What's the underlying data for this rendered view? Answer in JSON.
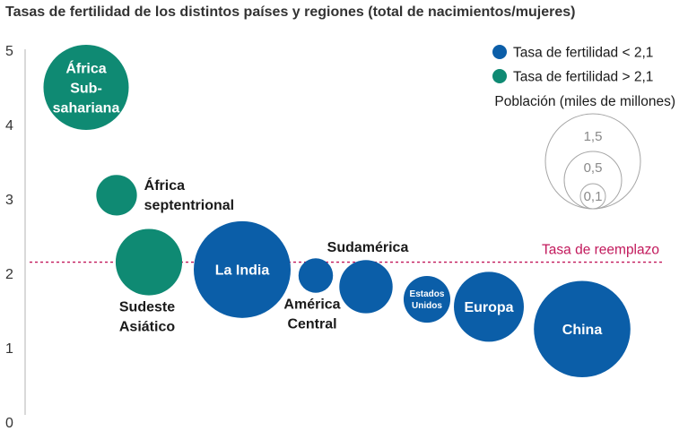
{
  "chart_data": {
    "type": "scatter",
    "title": "Tasas de fertilidad de los distintos países y regiones (total de nacimientos/mujeres)",
    "ylim": [
      0,
      5
    ],
    "yticks": [
      "0",
      "1",
      "2",
      "3",
      "4",
      "5"
    ],
    "reference_line": {
      "value": 2.15,
      "label": "Tasa de reemplazo",
      "color": "#c2185b"
    },
    "colors": {
      "below": "#0b5ea8",
      "above": "#0f8a73"
    },
    "legend": {
      "below": "Tasa de fertilidad < 2,1",
      "above": "Tasa de fertilidad > 2,1",
      "size_title": "Población (miles de millones)",
      "sizes": [
        "1,5",
        "0,5",
        "0,1"
      ]
    },
    "points": [
      {
        "label": [
          "África",
          "Sub-",
          "sahariana"
        ],
        "fertility": 4.5,
        "population_bn": 1.1,
        "group": "above",
        "label_pos": "inside"
      },
      {
        "label": [
          "África",
          "septentrional"
        ],
        "fertility": 3.05,
        "population_bn": 0.25,
        "group": "above",
        "label_pos": "right"
      },
      {
        "label": [
          "Sudeste",
          "Asiático"
        ],
        "fertility": 2.15,
        "population_bn": 0.67,
        "group": "above",
        "label_pos": "below"
      },
      {
        "label": [
          "La India"
        ],
        "fertility": 2.05,
        "population_bn": 1.42,
        "group": "below",
        "label_pos": "inside"
      },
      {
        "label": [
          "América",
          "Central"
        ],
        "fertility": 1.97,
        "population_bn": 0.18,
        "group": "below",
        "label_pos": "below"
      },
      {
        "label": [
          "Sudamérica"
        ],
        "fertility": 1.82,
        "population_bn": 0.43,
        "group": "below",
        "label_pos": "above"
      },
      {
        "label": [
          "Estados",
          "Unidos"
        ],
        "fertility": 1.65,
        "population_bn": 0.33,
        "group": "below",
        "label_pos": "inside"
      },
      {
        "label": [
          "Europa"
        ],
        "fertility": 1.55,
        "population_bn": 0.74,
        "group": "below",
        "label_pos": "inside"
      },
      {
        "label": [
          "China"
        ],
        "fertility": 1.25,
        "population_bn": 1.41,
        "group": "below",
        "label_pos": "inside"
      }
    ]
  }
}
